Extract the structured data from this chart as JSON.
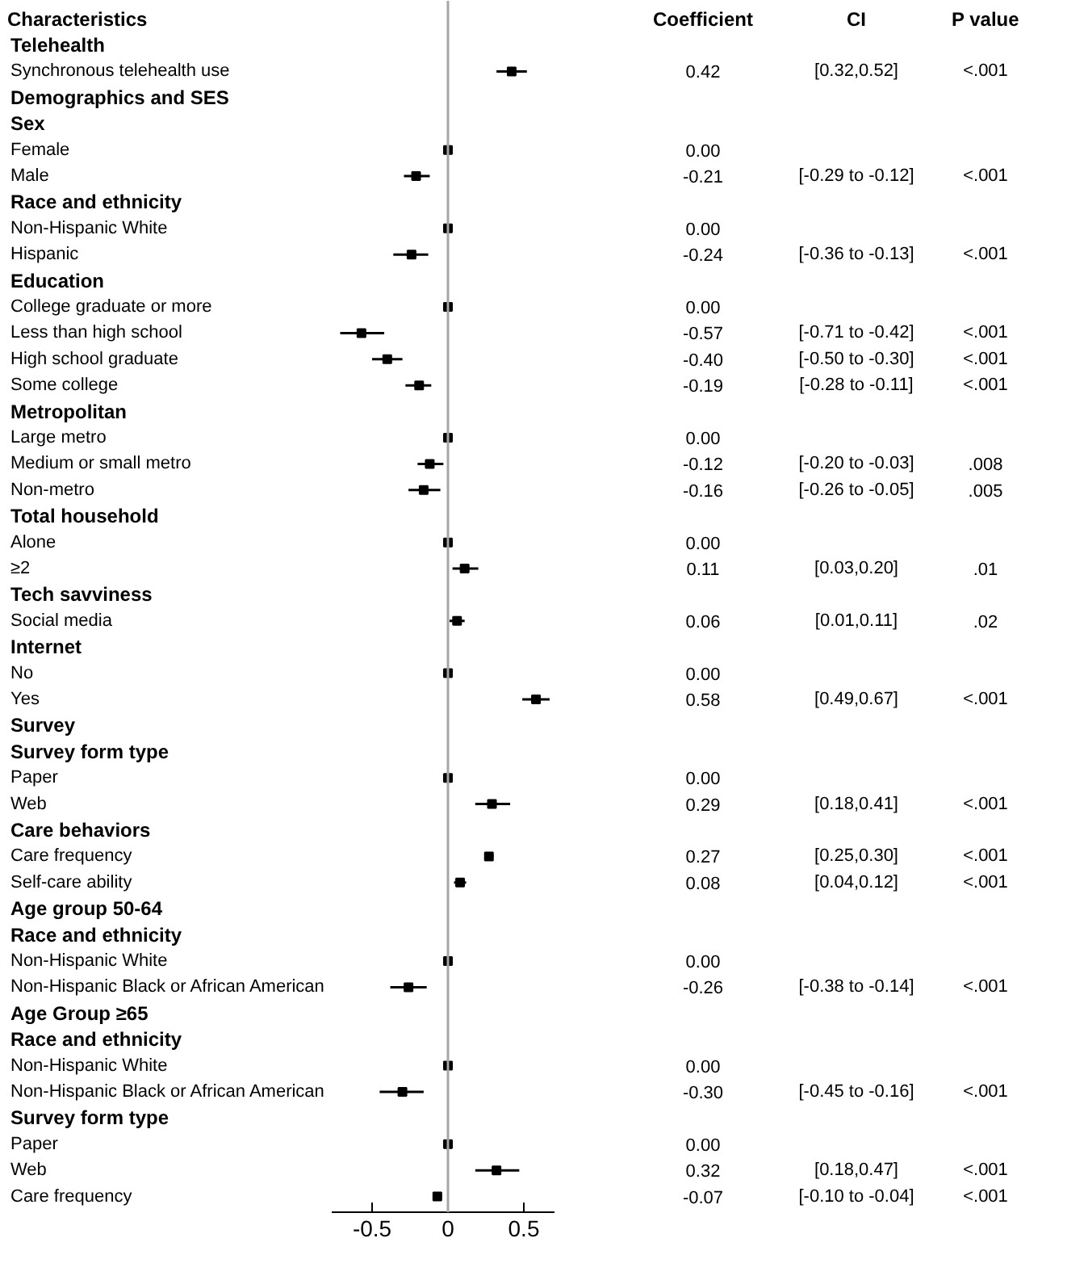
{
  "chart_data": {
    "type": "scatter",
    "orientation": "horizontal",
    "marker": "square",
    "grid": false,
    "ylabel": "Characteristics",
    "xlim": [
      -0.77,
      0.7
    ],
    "xticks": [
      -0.5,
      0,
      0.5
    ],
    "ref_lines": [
      {
        "axis": "x",
        "value": 0,
        "color": "#a6a6a6"
      }
    ],
    "categories": [
      "Telehealth",
      "Synchronous telehealth use",
      "Demographics and SES",
      "Sex",
      "Female",
      "Male",
      "Race and ethnicity",
      "Non-Hispanic White",
      "Hispanic",
      "Education",
      "College graduate or more",
      "Less than high school",
      "High school graduate",
      "Some college",
      "Metropolitan",
      "Large metro",
      "Medium or small metro",
      "Non-metro",
      "Total household",
      "Alone",
      "≥2",
      "Tech savviness",
      "Social media",
      "Internet",
      "No",
      "Yes",
      "Survey",
      "Survey form type",
      "Paper",
      "Web",
      "Care behaviors",
      "Care frequency",
      "Self-care ability",
      "Age group 50-64",
      "Race and ethnicity",
      "Non-Hispanic White",
      "Non-Hispanic Black or African American",
      "Age Group ≥65",
      "Race and ethnicity",
      "Non-Hispanic White",
      "Non-Hispanic Black or African American",
      "Survey form type",
      "Paper",
      "Web",
      "Care frequency"
    ],
    "series": [
      {
        "color": "#000000",
        "values": [
          null,
          0.42,
          null,
          null,
          0,
          -0.21,
          null,
          0,
          -0.24,
          null,
          0,
          -0.57,
          -0.4,
          -0.19,
          null,
          0,
          -0.12,
          -0.16,
          null,
          0,
          0.11,
          null,
          0.06,
          null,
          0,
          0.58,
          null,
          null,
          0,
          0.29,
          null,
          0.27,
          0.08,
          null,
          null,
          0,
          -0.26,
          null,
          null,
          0,
          -0.3,
          null,
          0,
          0.32,
          -0.07
        ],
        "errors": [
          null,
          [
            0.32,
            0.52
          ],
          null,
          null,
          null,
          [
            -0.29,
            -0.12
          ],
          null,
          null,
          [
            -0.36,
            -0.13
          ],
          null,
          null,
          [
            -0.71,
            -0.42
          ],
          [
            -0.5,
            -0.3
          ],
          [
            -0.28,
            -0.11
          ],
          null,
          null,
          [
            -0.2,
            -0.03
          ],
          [
            -0.26,
            -0.05
          ],
          null,
          null,
          [
            0.03,
            0.2
          ],
          null,
          [
            0.01,
            0.11
          ],
          null,
          null,
          [
            0.49,
            0.67
          ],
          null,
          null,
          null,
          [
            0.18,
            0.41
          ],
          null,
          [
            0.25,
            0.3
          ],
          [
            0.04,
            0.12
          ],
          null,
          null,
          null,
          [
            -0.38,
            -0.14
          ],
          null,
          null,
          null,
          [
            -0.45,
            -0.16
          ],
          null,
          null,
          [
            0.18,
            0.47
          ],
          [
            -0.1,
            -0.04
          ]
        ],
        "value_labels": [
          null,
          "0.42",
          null,
          null,
          "0.00",
          "-0.21",
          null,
          "0.00",
          "-0.24",
          null,
          "0.00",
          "-0.57",
          "-0.40",
          "-0.19",
          null,
          "0.00",
          "-0.12",
          "-0.16",
          null,
          "0.00",
          "0.11",
          null,
          "0.06",
          null,
          "0.00",
          "0.58",
          null,
          null,
          "0.00",
          "0.29",
          null,
          "0.27",
          "0.08",
          null,
          null,
          "0.00",
          "-0.26",
          null,
          null,
          "0.00",
          "-0.30",
          null,
          "0.00",
          "0.32",
          "-0.07"
        ]
      }
    ],
    "annotations": [
      "Coefficient",
      "CI",
      "P value",
      "[0.32,0.52]",
      "<.001",
      "[-0.29 to -0.12]",
      "<.001",
      "[-0.36 to -0.13]",
      "<.001",
      "[-0.71 to -0.42]",
      "<.001",
      "[-0.50 to -0.30]",
      "<.001",
      "[-0.28 to -0.11]",
      "<.001",
      "[-0.20 to -0.03]",
      ".008",
      "[-0.26 to -0.05]",
      ".005",
      "[0.03,0.20]",
      ".01",
      "[0.01,0.11]",
      ".02",
      "[0.49,0.67]",
      "<.001",
      "[0.18,0.41]",
      "<.001",
      "[0.25,0.30]",
      "<.001",
      "[0.04,0.12]",
      "<.001",
      "[-0.38 to -0.14]",
      "<.001",
      "[-0.45 to -0.16]",
      "<.001",
      "[0.18,0.47]",
      "<.001",
      "[-0.10 to -0.04]",
      "<.001"
    ]
  }
}
